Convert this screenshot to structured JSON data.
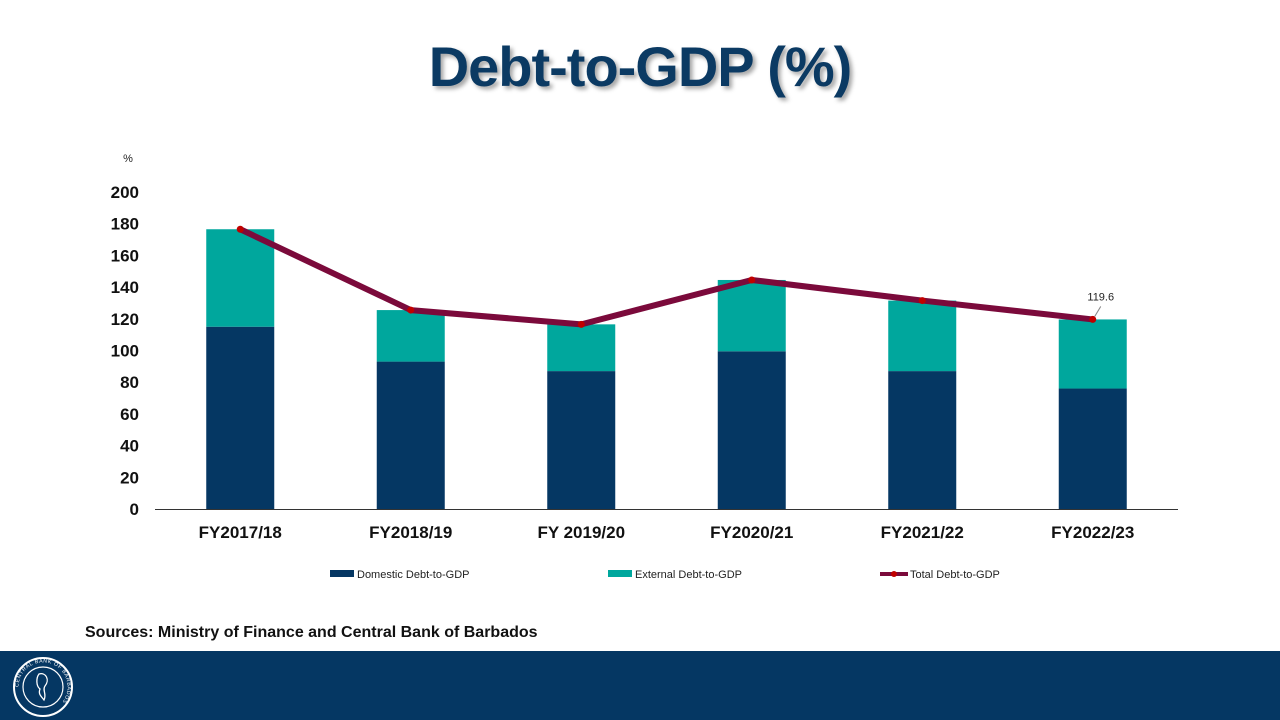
{
  "title": "Debt-to-GDP (%)",
  "sources": "Sources: Ministry of Finance and Central Bank of Barbados",
  "colors": {
    "domestic": "#053763",
    "external": "#00a79d",
    "total": "#7b0a3b",
    "marker": "#c00000",
    "title": "#0b3a63",
    "footer": "#053763"
  },
  "logo": {
    "text": "CENTRAL BANK OF BARBADOS"
  },
  "chart_data": {
    "type": "bar",
    "stacked": true,
    "y_unit_label": "%",
    "ylim": [
      0,
      200
    ],
    "yticks": [
      "0",
      "20",
      "40",
      "60",
      "80",
      "100",
      "120",
      "140",
      "160",
      "180",
      "200"
    ],
    "categories": [
      "FY2017/18",
      "FY2018/19",
      "FY 2019/20",
      "FY2020/21",
      "FY2021/22",
      "FY2022/23"
    ],
    "series": [
      {
        "name": "Domestic Debt-to-GDP",
        "type": "bar",
        "values": [
          115,
          93,
          87,
          99.5,
          87,
          76
        ]
      },
      {
        "name": "External Debt-to-GDP",
        "type": "bar",
        "values": [
          61.5,
          32.5,
          29.5,
          45,
          44.5,
          43.6
        ]
      },
      {
        "name": "Total Debt-to-GDP",
        "type": "line",
        "values": [
          176.5,
          125.5,
          116.5,
          144.5,
          131.5,
          119.6
        ]
      }
    ],
    "annotations": [
      {
        "series": "Total Debt-to-GDP",
        "category": "FY2022/23",
        "text": "119.6"
      }
    ],
    "legend_position": "bottom"
  }
}
